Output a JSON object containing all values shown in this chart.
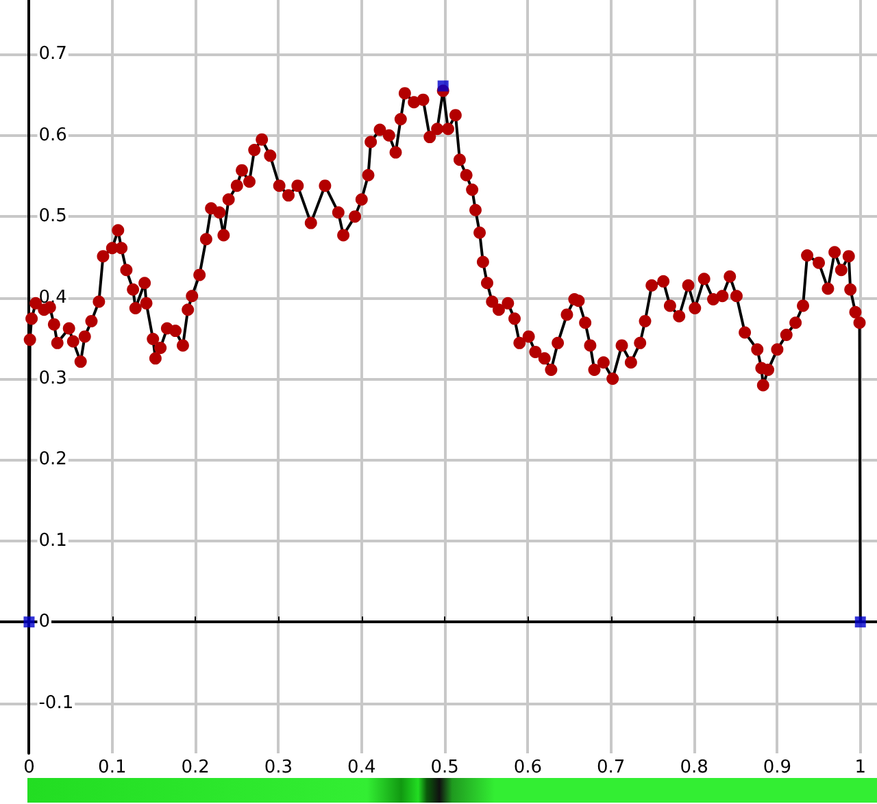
{
  "chart_data": {
    "type": "line",
    "xlim": [
      -0.035,
      1.02
    ],
    "ylim": [
      -0.162,
      0.767
    ],
    "xticks": [
      0,
      0.1,
      0.2,
      0.3,
      0.4,
      0.5,
      0.6,
      0.7,
      0.8,
      0.9,
      1
    ],
    "yticks": [
      -0.1,
      0,
      0.1,
      0.2,
      0.3,
      0.4,
      0.5,
      0.6,
      0.7
    ],
    "grid": true,
    "marker": "circle",
    "line_style": "solid",
    "series": [
      {
        "color": "#b30000",
        "x": [
          0,
          0.001,
          0.003,
          0.008,
          0.018,
          0.025,
          0.03,
          0.034,
          0.048,
          0.053,
          0.062,
          0.067,
          0.075,
          0.084,
          0.089,
          0.1,
          0.107,
          0.111,
          0.117,
          0.125,
          0.128,
          0.139,
          0.141,
          0.149,
          0.152,
          0.158,
          0.166,
          0.176,
          0.185,
          0.191,
          0.196,
          0.205,
          0.213,
          0.219,
          0.229,
          0.234,
          0.24,
          0.25,
          0.256,
          0.265,
          0.271,
          0.28,
          0.29,
          0.301,
          0.312,
          0.323,
          0.339,
          0.356,
          0.372,
          0.378,
          0.392,
          0.4,
          0.408,
          0.411,
          0.422,
          0.433,
          0.441,
          0.447,
          0.452,
          0.463,
          0.474,
          0.482,
          0.491,
          0.498,
          0.504,
          0.513,
          0.518,
          0.526,
          0.533,
          0.537,
          0.542,
          0.546,
          0.551,
          0.557,
          0.565,
          0.576,
          0.584,
          0.59,
          0.601,
          0.609,
          0.62,
          0.628,
          0.636,
          0.647,
          0.656,
          0.661,
          0.669,
          0.675,
          0.68,
          0.691,
          0.702,
          0.713,
          0.724,
          0.735,
          0.741,
          0.749,
          0.763,
          0.771,
          0.782,
          0.793,
          0.801,
          0.812,
          0.823,
          0.834,
          0.843,
          0.851,
          0.861,
          0.876,
          0.881,
          0.883,
          0.889,
          0.9,
          0.911,
          0.922,
          0.931,
          0.936,
          0.95,
          0.961,
          0.969,
          0.977,
          0.986,
          0.988,
          0.994,
          0.999,
          1
        ],
        "values": [
          0,
          0.348,
          0.374,
          0.393,
          0.385,
          0.388,
          0.367,
          0.344,
          0.362,
          0.346,
          0.321,
          0.352,
          0.371,
          0.395,
          0.451,
          0.461,
          0.483,
          0.461,
          0.434,
          0.41,
          0.387,
          0.418,
          0.393,
          0.349,
          0.325,
          0.338,
          0.362,
          0.359,
          0.341,
          0.385,
          0.402,
          0.428,
          0.472,
          0.51,
          0.505,
          0.477,
          0.521,
          0.538,
          0.557,
          0.543,
          0.582,
          0.595,
          0.575,
          0.538,
          0.526,
          0.538,
          0.492,
          0.538,
          0.505,
          0.477,
          0.5,
          0.521,
          0.551,
          0.592,
          0.607,
          0.6,
          0.579,
          0.62,
          0.652,
          0.641,
          0.644,
          0.598,
          0.608,
          0.655,
          0.608,
          0.625,
          0.57,
          0.551,
          0.533,
          0.508,
          0.48,
          0.444,
          0.418,
          0.395,
          0.385,
          0.393,
          0.374,
          0.344,
          0.352,
          0.333,
          0.325,
          0.311,
          0.344,
          0.379,
          0.398,
          0.396,
          0.369,
          0.341,
          0.311,
          0.32,
          0.3,
          0.341,
          0.32,
          0.344,
          0.371,
          0.415,
          0.42,
          0.39,
          0.377,
          0.415,
          0.387,
          0.423,
          0.398,
          0.402,
          0.426,
          0.402,
          0.357,
          0.336,
          0.313,
          0.292,
          0.311,
          0.336,
          0.354,
          0.369,
          0.39,
          0.452,
          0.443,
          0.411,
          0.456,
          0.434,
          0.451,
          0.41,
          0.382,
          0.369,
          0
        ]
      },
      {
        "type": "scatter",
        "marker": "square",
        "color": "#0000cc",
        "x": [
          0,
          0.498,
          1
        ],
        "values": [
          0,
          0.661,
          0
        ]
      }
    ]
  }
}
